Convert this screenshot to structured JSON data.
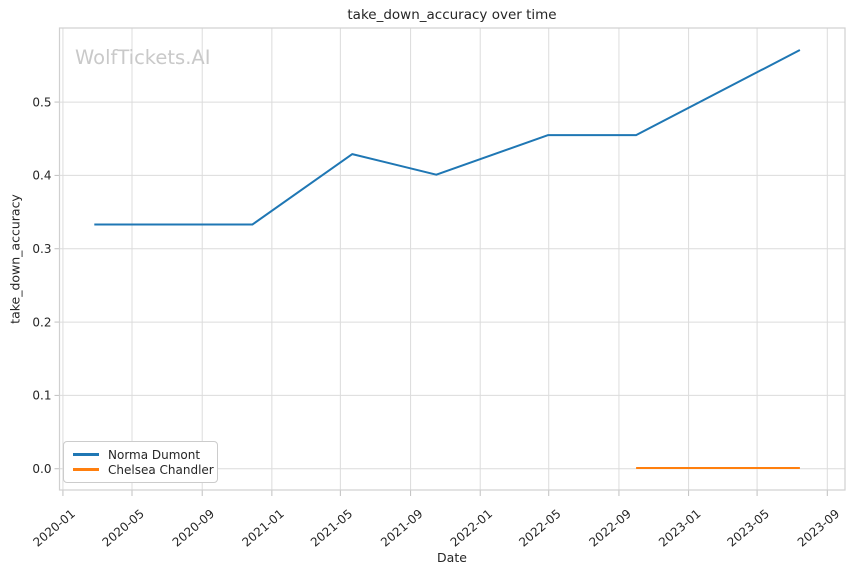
{
  "title": "take_down_accuracy over time",
  "watermark": "WolfTickets.AI",
  "axes": {
    "xlabel": "Date",
    "ylabel": "take_down_accuracy"
  },
  "legend": {
    "items": [
      {
        "label": "Norma Dumont",
        "color": "#1f77b4"
      },
      {
        "label": "Chelsea Chandler",
        "color": "#ff7f0e"
      }
    ]
  },
  "colors": {
    "grid": "#dcdcdc",
    "spine": "#d0d0d0",
    "tick": "#c0c0c0",
    "text": "#262626",
    "background": "#ffffff",
    "watermark": "#c9c9c9",
    "series_blue": "#1f77b4",
    "series_orange": "#ff7f0e"
  },
  "chart_data": {
    "type": "line",
    "title": "take_down_accuracy over time",
    "xlabel": "Date",
    "ylabel": "take_down_accuracy",
    "grid": true,
    "legend_position": "lower left",
    "x_ticks": [
      "2020-01",
      "2020-05",
      "2020-09",
      "2021-01",
      "2021-05",
      "2021-09",
      "2022-01",
      "2022-05",
      "2022-09",
      "2023-01",
      "2023-05",
      "2023-09"
    ],
    "y_ticks": [
      0.0,
      0.1,
      0.2,
      0.3,
      0.4,
      0.5
    ],
    "xlim": [
      "2019-12-26",
      "2023-10-02"
    ],
    "ylim": [
      -0.029,
      0.601
    ],
    "series": [
      {
        "name": "Norma Dumont",
        "color": "#1f77b4",
        "points": [
          [
            "2020-02-25",
            0.333
          ],
          [
            "2020-11-28",
            0.333
          ],
          [
            "2021-05-22",
            0.429
          ],
          [
            "2021-10-16",
            0.401
          ],
          [
            "2022-04-30",
            0.455
          ],
          [
            "2022-10-01",
            0.455
          ],
          [
            "2023-07-15",
            0.571
          ]
        ]
      },
      {
        "name": "Chelsea Chandler",
        "color": "#ff7f0e",
        "points": [
          [
            "2022-10-01",
            0.001
          ],
          [
            "2023-07-15",
            0.001
          ]
        ]
      }
    ]
  }
}
